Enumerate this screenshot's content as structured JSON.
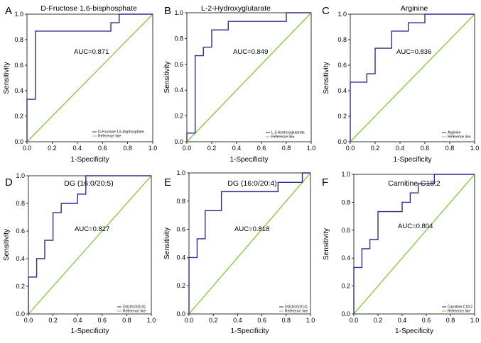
{
  "chart_data": [
    {
      "type": "line",
      "panel": "A",
      "title": "D-Fructose 1,6-bisphosphate",
      "xlabel": "1-Specificity",
      "ylabel": "Sensitivity",
      "xlim": [
        0,
        1
      ],
      "ylim": [
        0,
        1
      ],
      "xticks": [
        "0.0",
        "0.2",
        "0.4",
        "0.6",
        "0.8",
        "1.0"
      ],
      "yticks": [
        "0.0",
        "0.2",
        "0.4",
        "0.6",
        "0.8",
        "1.0"
      ],
      "annotation": "AUC=0.871",
      "legend_position": "bottom-right",
      "colors": {
        "roc": "#2b2f8c",
        "reference": "#7fcc33"
      },
      "series": [
        {
          "name": "D-Fructose 1,6-bisphosphate",
          "x": [
            0,
            0,
            0.067,
            0.067,
            0.667,
            0.667,
            0.733,
            0.733,
            1.0
          ],
          "y": [
            0,
            0.333,
            0.333,
            0.867,
            0.867,
            0.933,
            0.933,
            1.0,
            1.0
          ]
        },
        {
          "name": "Reference line",
          "x": [
            0,
            1
          ],
          "y": [
            0,
            1
          ]
        }
      ]
    },
    {
      "type": "line",
      "panel": "B",
      "title": "L-2-Hydroxyglutarate",
      "xlabel": "1-Specificity",
      "ylabel": "Sensitivity",
      "xlim": [
        0,
        1
      ],
      "ylim": [
        0,
        1
      ],
      "xticks": [
        "0.0",
        "0.2",
        "0.4",
        "0.6",
        "0.8",
        "1.0"
      ],
      "yticks": [
        "0.0",
        "0.2",
        "0.4",
        "0.6",
        "0.8",
        "1.0"
      ],
      "annotation": "AUC=0.849",
      "legend_position": "bottom-right",
      "colors": {
        "roc": "#2b2f8c",
        "reference": "#7fcc33"
      },
      "series": [
        {
          "name": "L-2-Hydroxyglutarate",
          "x": [
            0,
            0,
            0.067,
            0.067,
            0.133,
            0.133,
            0.2,
            0.2,
            0.333,
            0.333,
            0.8,
            0.8,
            1.0
          ],
          "y": [
            0,
            0.067,
            0.067,
            0.667,
            0.667,
            0.733,
            0.733,
            0.867,
            0.867,
            0.933,
            0.933,
            1.0,
            1.0
          ]
        },
        {
          "name": "Reference line",
          "x": [
            0,
            1
          ],
          "y": [
            0,
            1
          ]
        }
      ]
    },
    {
      "type": "line",
      "panel": "C",
      "title": "Arginine",
      "xlabel": "1-Specificity",
      "ylabel": "Sensitivity",
      "xlim": [
        0,
        1
      ],
      "ylim": [
        0,
        1
      ],
      "xticks": [
        "0.0",
        "0.2",
        "0.4",
        "0.6",
        "0.8",
        "1.0"
      ],
      "yticks": [
        "0.0",
        "0.2",
        "0.4",
        "0.6",
        "0.8",
        "1.0"
      ],
      "annotation": "AUC=0.836",
      "legend_position": "bottom-right",
      "colors": {
        "roc": "#2b2f8c",
        "reference": "#7fcc33"
      },
      "series": [
        {
          "name": "Arginine",
          "x": [
            0,
            0,
            0.133,
            0.133,
            0.2,
            0.2,
            0.333,
            0.333,
            0.467,
            0.467,
            0.6,
            0.6,
            1.0
          ],
          "y": [
            0,
            0.467,
            0.467,
            0.533,
            0.533,
            0.733,
            0.733,
            0.867,
            0.867,
            0.933,
            0.933,
            1.0,
            1.0
          ]
        },
        {
          "name": "Reference line",
          "x": [
            0,
            1
          ],
          "y": [
            0,
            1
          ]
        }
      ]
    },
    {
      "type": "line",
      "panel": "D",
      "title": "DG (16:0/20:5)",
      "xlabel": "1-Specificity",
      "ylabel": "Sensitivity",
      "xlim": [
        0,
        1
      ],
      "ylim": [
        0,
        1
      ],
      "xticks": [
        "0.0",
        "0.2",
        "0.4",
        "0.6",
        "0.8",
        "1.0"
      ],
      "yticks": [
        "0.0",
        "0.2",
        "0.4",
        "0.6",
        "0.8",
        "1.0"
      ],
      "annotation": "AUC=0.827",
      "legend_position": "bottom-right",
      "colors": {
        "roc": "#2b2f8c",
        "reference": "#7fcc33"
      },
      "series": [
        {
          "name": "DG(16:0/20:5)",
          "x": [
            0,
            0,
            0.067,
            0.067,
            0.133,
            0.133,
            0.2,
            0.2,
            0.267,
            0.267,
            0.4,
            0.4,
            0.467,
            0.467,
            1.0
          ],
          "y": [
            0,
            0.267,
            0.267,
            0.4,
            0.4,
            0.533,
            0.533,
            0.733,
            0.733,
            0.8,
            0.8,
            0.867,
            0.867,
            1.0,
            1.0
          ]
        },
        {
          "name": "Reference line",
          "x": [
            0,
            1
          ],
          "y": [
            0,
            1
          ]
        }
      ]
    },
    {
      "type": "line",
      "panel": "E",
      "title": "DG (16:0/20:4)",
      "xlabel": "1-Specificity",
      "ylabel": "Sensitivity",
      "xlim": [
        0,
        1
      ],
      "ylim": [
        0,
        1
      ],
      "xticks": [
        "0.0",
        "0.2",
        "0.4",
        "0.6",
        "0.8",
        "1.0"
      ],
      "yticks": [
        "0.0",
        "0.2",
        "0.4",
        "0.6",
        "0.8",
        "1.0"
      ],
      "annotation": "AUC=0.818",
      "legend_position": "bottom-right",
      "colors": {
        "roc": "#2b2f8c",
        "reference": "#7fcc33"
      },
      "series": [
        {
          "name": "DG(16:0/20:4)",
          "x": [
            0,
            0,
            0.067,
            0.067,
            0.133,
            0.133,
            0.267,
            0.267,
            0.733,
            0.733,
            0.933,
            0.933,
            1.0
          ],
          "y": [
            0,
            0.4,
            0.4,
            0.533,
            0.533,
            0.733,
            0.733,
            0.867,
            0.867,
            0.933,
            0.933,
            1.0,
            1.0
          ]
        },
        {
          "name": "Reference line",
          "x": [
            0,
            1
          ],
          "y": [
            0,
            1
          ]
        }
      ]
    },
    {
      "type": "line",
      "panel": "F",
      "title": "Carnitine-C18:2",
      "xlabel": "1-Specificity",
      "ylabel": "Sensitivity",
      "xlim": [
        0,
        1
      ],
      "ylim": [
        0,
        1
      ],
      "xticks": [
        "0.0",
        "0.2",
        "0.4",
        "0.6",
        "0.8",
        "1.0"
      ],
      "yticks": [
        "0.0",
        "0.2",
        "0.4",
        "0.6",
        "0.8",
        "1.0"
      ],
      "annotation": "AUC=0.804",
      "legend_position": "bottom-right",
      "colors": {
        "roc": "#2b2f8c",
        "reference": "#7fcc33"
      },
      "series": [
        {
          "name": "Carnitine-C18:2",
          "x": [
            0,
            0,
            0.067,
            0.067,
            0.133,
            0.133,
            0.2,
            0.2,
            0.4,
            0.4,
            0.467,
            0.467,
            0.533,
            0.533,
            0.667,
            0.667,
            1.0
          ],
          "y": [
            0,
            0.333,
            0.333,
            0.467,
            0.467,
            0.533,
            0.533,
            0.733,
            0.733,
            0.8,
            0.8,
            0.867,
            0.867,
            0.933,
            0.933,
            1.0,
            1.0
          ]
        },
        {
          "name": "Reference line",
          "x": [
            0,
            1
          ],
          "y": [
            0,
            1
          ]
        }
      ]
    }
  ]
}
